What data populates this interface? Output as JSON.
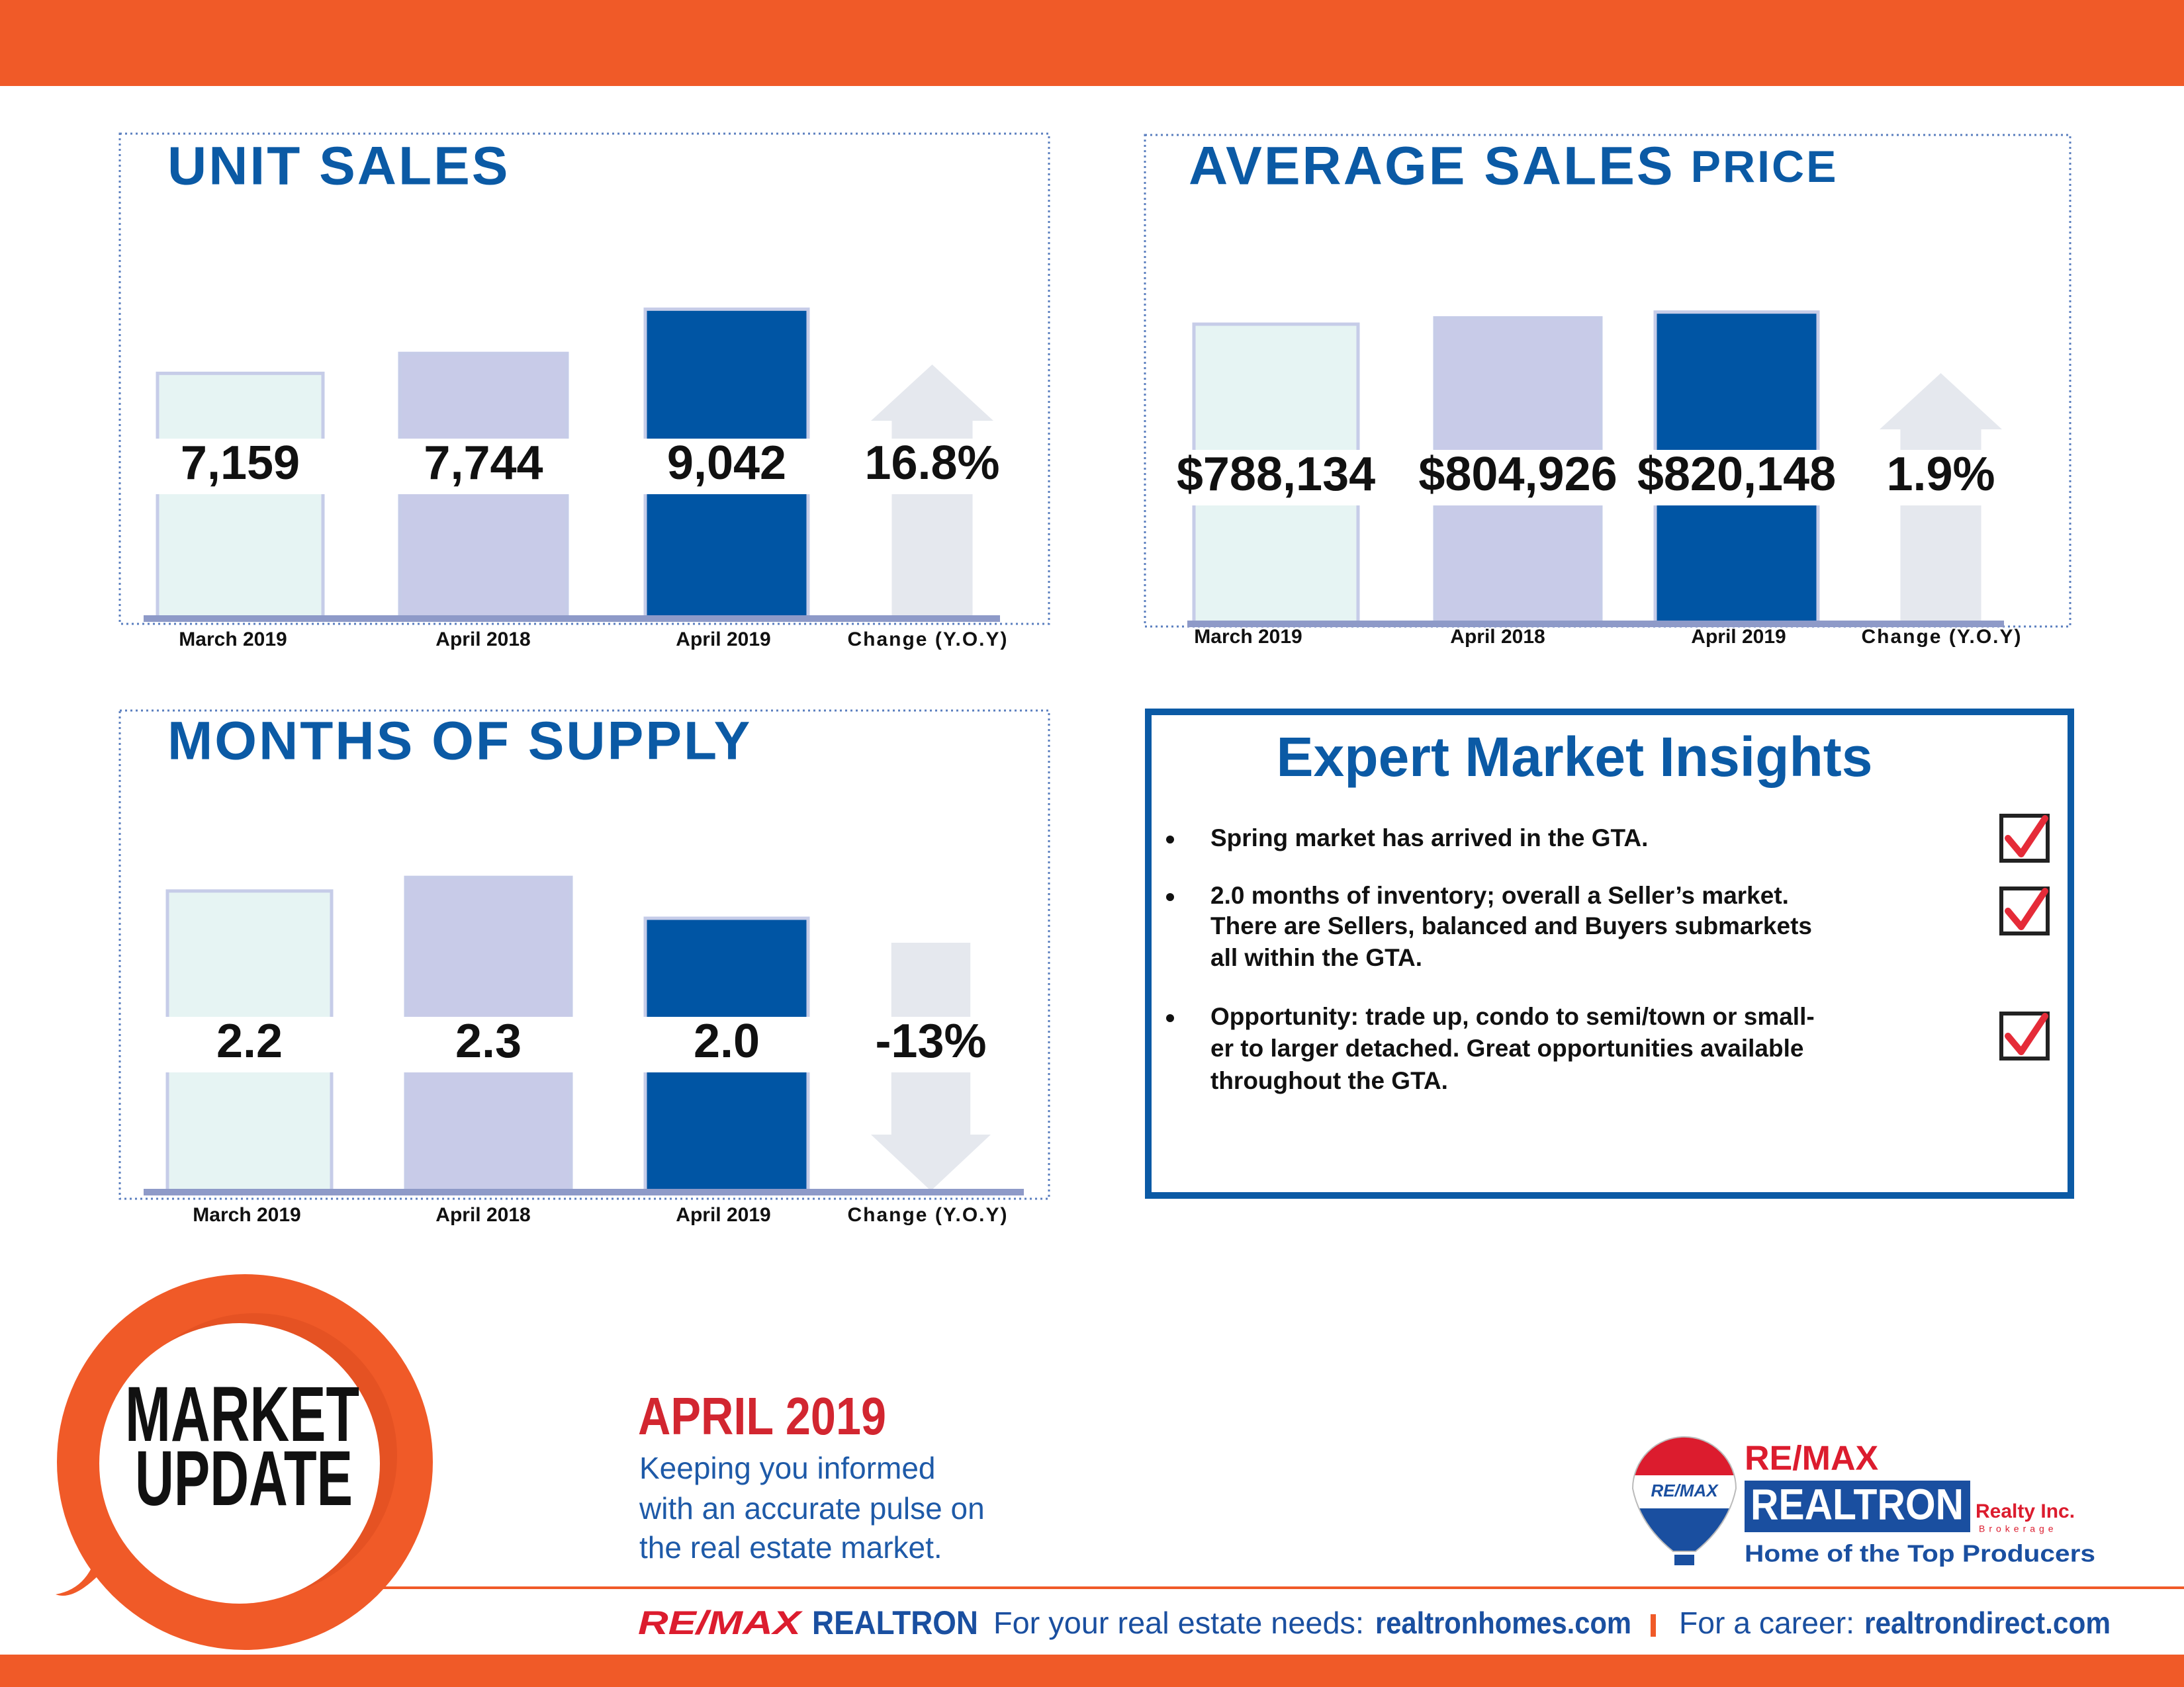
{
  "chart_data": [
    {
      "type": "bar",
      "title": "UNIT SALES",
      "categories": [
        "March 2019",
        "April 2018",
        "April 2019"
      ],
      "values": [
        7159,
        7744,
        9042
      ],
      "value_labels": [
        "7,159",
        "7,744",
        "9,042"
      ],
      "colors": [
        "#e6f4f3",
        "#c8cbe8",
        "#0055a4"
      ],
      "edge_color": "#c6cce8",
      "ylim": [
        0,
        10000
      ],
      "change": {
        "label": "Change (Y.O.Y)",
        "value": 16.8,
        "value_label": "16.8%",
        "color": "#e5e8ee"
      }
    },
    {
      "type": "bar",
      "title": "AVERAGE SALES",
      "title_small": "PRICE",
      "categories": [
        "March 2019",
        "April 2018",
        "April 2019"
      ],
      "values": [
        788134,
        804926,
        820148
      ],
      "value_labels": [
        "$788,134",
        "$804,926",
        "$820,148"
      ],
      "colors": [
        "#e6f4f3",
        "#c8cbe8",
        "#0055a4"
      ],
      "edge_color": "#c6cce8",
      "ylim": [
        0,
        900000
      ],
      "change": {
        "label": "Change (Y.O.Y)",
        "value": 1.9,
        "value_label": "1.9%",
        "color": "#e5e8ee"
      }
    },
    {
      "type": "bar",
      "title": "MONTHS OF SUPPLY",
      "categories": [
        "March 2019",
        "April 2018",
        "April 2019"
      ],
      "values": [
        2.2,
        2.3,
        2.0
      ],
      "value_labels": [
        "2.2",
        "2.3",
        "2.0"
      ],
      "colors": [
        "#e6f4f3",
        "#c8cbe8",
        "#0055a4"
      ],
      "edge_color": "#c6cce8",
      "ylim": [
        0,
        2.5
      ],
      "change": {
        "label": "Change (Y.O.Y)",
        "value": -13,
        "value_label": "-13%",
        "color": "#e5e8ee"
      }
    }
  ],
  "insights": {
    "title": "Expert Market Insights",
    "items": [
      [
        "Spring market has arrived in the GTA."
      ],
      [
        "2.0 months of inventory; overall a Seller’s market.",
        "There are Sellers, balanced and Buyers submarkets",
        "all within the GTA."
      ],
      [
        "Opportunity: trade up, condo to semi/town or small-",
        "er to larger detached. Great opportunities available",
        "throughout the GTA."
      ]
    ]
  },
  "badge": {
    "line1": "MARKET",
    "line2": "UPDATE"
  },
  "edition": {
    "title": "APRIL 2019",
    "lines": [
      "Keeping you informed",
      "with an accurate pulse on",
      "the real estate market."
    ]
  },
  "logo": {
    "balloon_text": "RE/MAX",
    "brand": "RE/MAX",
    "name": "REALTRON",
    "realty": "Realty Inc.",
    "brokerage": "Brokerage",
    "tagline": "Home of the Top Producers"
  },
  "footer": {
    "brand1": "RE/MAX",
    "brand2": "REALTRON",
    "needs": "For your real estate needs:",
    "needs_url": "realtronhomes.com",
    "career": "For a career:",
    "career_url": "realtrondirect.com"
  }
}
